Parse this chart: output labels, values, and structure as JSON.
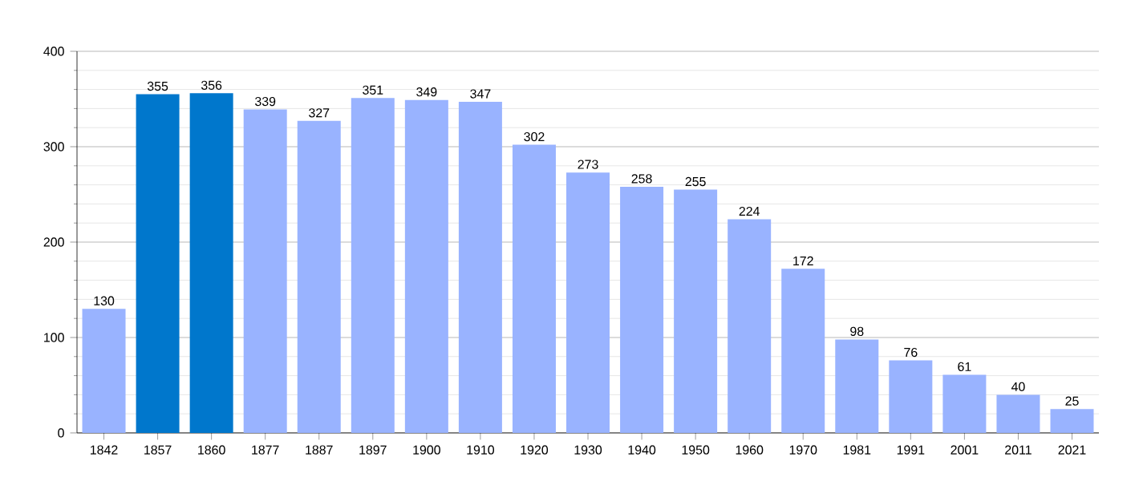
{
  "chart_data": {
    "type": "bar",
    "categories": [
      "1842",
      "1857",
      "1860",
      "1877",
      "1887",
      "1897",
      "1900",
      "1910",
      "1920",
      "1930",
      "1940",
      "1950",
      "1960",
      "1970",
      "1981",
      "1991",
      "2001",
      "2011",
      "2021"
    ],
    "values": [
      130,
      355,
      356,
      339,
      327,
      351,
      349,
      347,
      302,
      273,
      258,
      255,
      224,
      172,
      98,
      76,
      61,
      40,
      25
    ],
    "colors": [
      "#99b3ff",
      "#0077cc",
      "#0077cc",
      "#99b3ff",
      "#99b3ff",
      "#99b3ff",
      "#99b3ff",
      "#99b3ff",
      "#99b3ff",
      "#99b3ff",
      "#99b3ff",
      "#99b3ff",
      "#99b3ff",
      "#99b3ff",
      "#99b3ff",
      "#99b3ff",
      "#99b3ff",
      "#99b3ff",
      "#99b3ff"
    ],
    "ylim": [
      0,
      400
    ],
    "yticks": [
      0,
      {
        "value": 20,
        "label": null
      },
      {
        "value": 40,
        "label": null
      },
      {
        "value": 60,
        "label": null
      },
      {
        "value": 80,
        "label": null
      },
      100,
      {
        "value": 120,
        "label": null
      },
      {
        "value": 140,
        "label": null
      },
      {
        "value": 160,
        "label": null
      },
      {
        "value": 180,
        "label": null
      },
      200,
      {
        "value": 220,
        "label": null
      },
      {
        "value": 240,
        "label": null
      },
      {
        "value": 260,
        "label": null
      },
      {
        "value": 280,
        "label": null
      },
      300,
      {
        "value": 320,
        "label": null
      },
      {
        "value": 340,
        "label": null
      },
      {
        "value": 360,
        "label": null
      },
      {
        "value": 380,
        "label": null
      },
      400
    ],
    "grid": "y",
    "data_labels": true
  }
}
